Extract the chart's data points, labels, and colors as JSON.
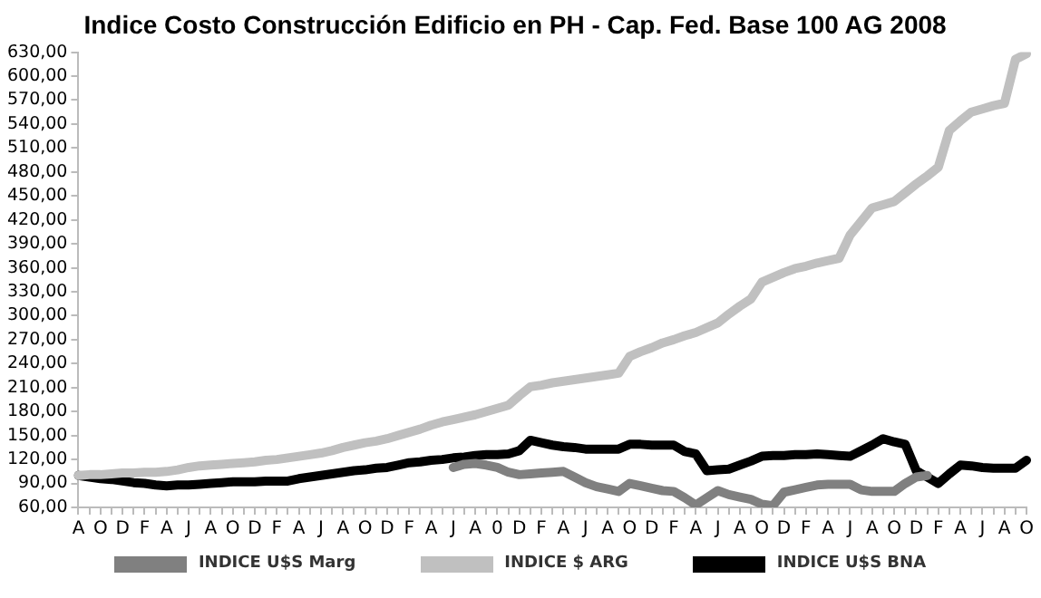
{
  "chart_data": {
    "type": "line",
    "title": "Indice Costo Construcción Edificio en PH - Cap. Fed. Base 100 AG 2008",
    "categories": [
      "A",
      null,
      "O",
      null,
      "D",
      null,
      "F",
      null,
      "A",
      null,
      "J",
      null,
      "A",
      null,
      "O",
      null,
      "D",
      null,
      "F",
      null,
      "A",
      null,
      "J",
      null,
      "A",
      null,
      "O",
      null,
      "D",
      null,
      "F",
      null,
      "A",
      null,
      "J",
      null,
      "A",
      null,
      "0",
      null,
      "D",
      null,
      "F",
      null,
      "A",
      null,
      "J",
      null,
      "A",
      null,
      "O",
      null,
      "D",
      null,
      "F",
      null,
      "A",
      null,
      "J",
      null,
      "A",
      null,
      "O",
      null,
      "D",
      null,
      "F",
      null,
      "A",
      null,
      "J",
      null,
      "A",
      null,
      "O",
      null,
      "D",
      null,
      "F",
      null,
      "A",
      null,
      "J",
      null,
      "A",
      null,
      "O"
    ],
    "ylim": [
      60,
      630
    ],
    "yticks": [
      {
        "value": 60,
        "label": "60,00"
      },
      {
        "value": 90,
        "label": "90,00"
      },
      {
        "value": 120,
        "label": "120,00"
      },
      {
        "value": 150,
        "label": "150,00"
      },
      {
        "value": 180,
        "label": "180,00"
      },
      {
        "value": 210,
        "label": "210,00"
      },
      {
        "value": 240,
        "label": "240,00"
      },
      {
        "value": 270,
        "label": "270,00"
      },
      {
        "value": 300,
        "label": "300,00"
      },
      {
        "value": 330,
        "label": "330,00"
      },
      {
        "value": 360,
        "label": "360,00"
      },
      {
        "value": 390,
        "label": "390,00"
      },
      {
        "value": 420,
        "label": "420,00"
      },
      {
        "value": 450,
        "label": "450,00"
      },
      {
        "value": 480,
        "label": "480,00"
      },
      {
        "value": 510,
        "label": "510,00"
      },
      {
        "value": 540,
        "label": "540,00"
      },
      {
        "value": 570,
        "label": "570,00"
      },
      {
        "value": 600,
        "label": "600,00"
      },
      {
        "value": 630,
        "label": "630,00"
      }
    ],
    "legend": "bottom",
    "marker": "none",
    "line_style": "solid",
    "series": [
      {
        "name": "INDICE U$S Marg",
        "color": "#808080",
        "values": [
          null,
          null,
          null,
          null,
          null,
          null,
          null,
          null,
          null,
          null,
          null,
          null,
          null,
          null,
          null,
          null,
          null,
          null,
          null,
          null,
          null,
          null,
          null,
          null,
          null,
          null,
          null,
          null,
          null,
          null,
          null,
          null,
          null,
          null,
          110,
          114,
          115,
          113,
          110,
          104,
          101,
          102,
          103,
          104,
          105,
          98,
          91,
          86,
          83,
          80,
          90,
          87,
          84,
          81,
          80,
          72,
          63,
          72,
          81,
          76,
          73,
          70,
          64,
          62,
          79,
          82,
          85,
          88,
          89,
          89,
          89,
          82,
          80,
          80,
          80,
          90,
          98,
          100,
          null,
          null,
          null,
          null,
          null,
          null,
          null,
          null,
          null
        ]
      },
      {
        "name": "INDICE $ ARG",
        "color": "#c0c0c0",
        "values": [
          100,
          101,
          101,
          102,
          103,
          103,
          104,
          104,
          105,
          107,
          110,
          112,
          113,
          114,
          115,
          116,
          117,
          119,
          120,
          122,
          124,
          126,
          128,
          131,
          135,
          138,
          141,
          143,
          146,
          150,
          154,
          158,
          163,
          167,
          170,
          173,
          176,
          180,
          184,
          188,
          200,
          211,
          213,
          216,
          218,
          220,
          222,
          224,
          226,
          228,
          249,
          255,
          260,
          266,
          270,
          275,
          279,
          285,
          291,
          302,
          312,
          321,
          342,
          348,
          354,
          359,
          362,
          366,
          369,
          372,
          401,
          418,
          435,
          439,
          443,
          454,
          465,
          475,
          486,
          532,
          544,
          555,
          559,
          563,
          566,
          621,
          628
        ]
      },
      {
        "name": "INDICE U$S BNA",
        "color": "#000000",
        "values": [
          100,
          98,
          96,
          95,
          93,
          91,
          90,
          88,
          87,
          88,
          88,
          89,
          90,
          91,
          92,
          92,
          92,
          93,
          93,
          93,
          96,
          98,
          100,
          102,
          104,
          106,
          107,
          109,
          110,
          113,
          116,
          117,
          119,
          120,
          122,
          123,
          125,
          126,
          126,
          127,
          131,
          144,
          141,
          138,
          136,
          135,
          133,
          133,
          133,
          133,
          139,
          139,
          138,
          138,
          138,
          130,
          127,
          106,
          107,
          108,
          113,
          118,
          124,
          125,
          125,
          126,
          126,
          127,
          126,
          125,
          124,
          131,
          138,
          146,
          142,
          139,
          106,
          98,
          90,
          102,
          113,
          112,
          110,
          109,
          109,
          109,
          119
        ]
      }
    ]
  }
}
